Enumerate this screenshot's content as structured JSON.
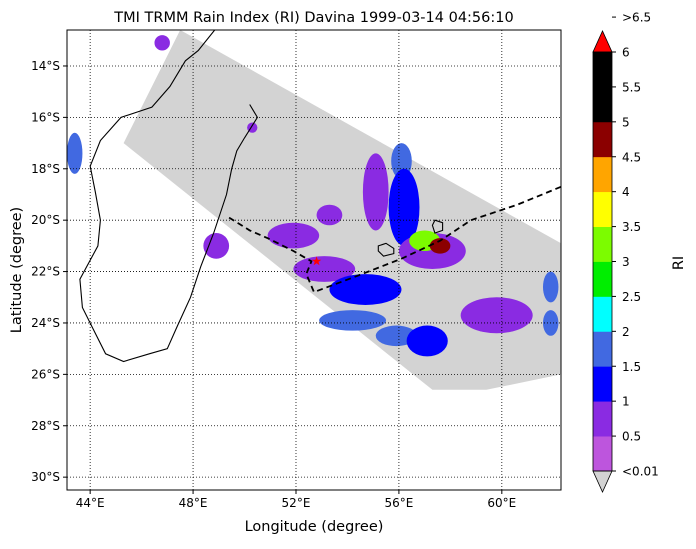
{
  "chart_data": {
    "type": "heatmap",
    "title": "TMI TRMM Rain Index (RI) Davina 1999-03-14 04:56:10",
    "xlabel": "Longitude (degree)",
    "ylabel": "Latitude (degree)",
    "xlim": [
      43.1,
      62.3
    ],
    "ylim": [
      -30.5,
      -12.6
    ],
    "x_ticks": [
      {
        "value": 44,
        "label": "44°E"
      },
      {
        "value": 48,
        "label": "48°E"
      },
      {
        "value": 52,
        "label": "52°E"
      },
      {
        "value": 56,
        "label": "56°E"
      },
      {
        "value": 60,
        "label": "60°E"
      }
    ],
    "y_ticks": [
      {
        "value": -14,
        "label": "14°S"
      },
      {
        "value": -16,
        "label": "16°S"
      },
      {
        "value": -18,
        "label": "18°S"
      },
      {
        "value": -20,
        "label": "20°S"
      },
      {
        "value": -22,
        "label": "22°S"
      },
      {
        "value": -24,
        "label": "24°S"
      },
      {
        "value": -26,
        "label": "26°S"
      },
      {
        "value": -28,
        "label": "28°S"
      },
      {
        "value": -30,
        "label": "30°S"
      }
    ],
    "grid": "dotted",
    "swath_color": "#d3d3d3",
    "swath": [
      [
        45.3,
        -17.0
      ],
      [
        47.5,
        -12.6
      ],
      [
        62.3,
        -20.9
      ],
      [
        62.3,
        -26.0
      ],
      [
        59.4,
        -26.6
      ],
      [
        57.3,
        -26.6
      ]
    ],
    "coastline": [
      [
        50.2,
        -15.5
      ],
      [
        50.5,
        -16.0
      ],
      [
        50.0,
        -16.8
      ],
      [
        49.7,
        -17.3
      ],
      [
        49.5,
        -18.0
      ],
      [
        49.3,
        -19.0
      ],
      [
        48.8,
        -20.5
      ],
      [
        48.3,
        -21.8
      ],
      [
        47.9,
        -23.0
      ],
      [
        47.4,
        -24.1
      ],
      [
        47.0,
        -25.0
      ],
      [
        46.3,
        -25.2
      ],
      [
        45.3,
        -25.5
      ],
      [
        44.6,
        -25.2
      ],
      [
        44.1,
        -24.2
      ],
      [
        43.7,
        -23.4
      ],
      [
        43.6,
        -22.3
      ],
      [
        44.3,
        -21.0
      ],
      [
        44.4,
        -20.0
      ],
      [
        44.2,
        -18.9
      ],
      [
        44.0,
        -17.9
      ],
      [
        44.4,
        -16.9
      ],
      [
        45.2,
        -16.0
      ],
      [
        46.4,
        -15.6
      ],
      [
        47.1,
        -14.8
      ],
      [
        47.7,
        -13.8
      ],
      [
        48.2,
        -13.4
      ],
      [
        49.0,
        -12.4
      ]
    ],
    "islands": [
      [
        [
          55.2,
          -21.0
        ],
        [
          55.5,
          -20.9
        ],
        [
          55.8,
          -21.1
        ],
        [
          55.8,
          -21.3
        ],
        [
          55.4,
          -21.4
        ],
        [
          55.2,
          -21.2
        ]
      ],
      [
        [
          57.4,
          -20.0
        ],
        [
          57.7,
          -20.1
        ],
        [
          57.7,
          -20.4
        ],
        [
          57.4,
          -20.5
        ],
        [
          57.3,
          -20.2
        ]
      ]
    ],
    "track": [
      [
        49.4,
        -19.9
      ],
      [
        50.2,
        -20.4
      ],
      [
        50.9,
        -20.7
      ],
      [
        51.9,
        -21.2
      ],
      [
        52.6,
        -21.6
      ],
      [
        52.4,
        -22.1
      ],
      [
        52.7,
        -22.8
      ],
      [
        54.3,
        -22.2
      ],
      [
        56.1,
        -21.5
      ],
      [
        57.6,
        -20.8
      ],
      [
        58.8,
        -20.0
      ],
      [
        60.6,
        -19.4
      ],
      [
        62.3,
        -18.7
      ]
    ],
    "track_color": "#000000",
    "storm_center": {
      "lon": 52.8,
      "lat": -21.6,
      "color": "#ff0000"
    },
    "rain_cells": [
      {
        "lon": 46.8,
        "lat": -13.1,
        "level": 1,
        "rx": 0.3,
        "ry": 0.3
      },
      {
        "lon": 43.4,
        "lat": -17.4,
        "level": 3,
        "rx": 0.3,
        "ry": 0.8
      },
      {
        "lon": 55.1,
        "lat": -18.9,
        "level": 1,
        "rx": 0.5,
        "ry": 1.5
      },
      {
        "lon": 56.1,
        "lat": -17.7,
        "level": 3,
        "rx": 0.4,
        "ry": 0.7
      },
      {
        "lon": 56.2,
        "lat": -19.5,
        "level": 2,
        "rx": 0.6,
        "ry": 1.5
      },
      {
        "lon": 57.3,
        "lat": -21.2,
        "level": 1,
        "rx": 1.3,
        "ry": 0.7
      },
      {
        "lon": 57.0,
        "lat": -20.8,
        "level": 6,
        "rx": 0.6,
        "ry": 0.4
      },
      {
        "lon": 57.6,
        "lat": -21.0,
        "level": 9,
        "rx": 0.4,
        "ry": 0.3
      },
      {
        "lon": 51.9,
        "lat": -20.6,
        "level": 1,
        "rx": 1.0,
        "ry": 0.5
      },
      {
        "lon": 53.1,
        "lat": -21.9,
        "level": 1,
        "rx": 1.2,
        "ry": 0.5
      },
      {
        "lon": 54.7,
        "lat": -22.7,
        "level": 2,
        "rx": 1.4,
        "ry": 0.6
      },
      {
        "lon": 48.9,
        "lat": -21.0,
        "level": 1,
        "rx": 0.5,
        "ry": 0.5
      },
      {
        "lon": 54.2,
        "lat": -23.9,
        "level": 3,
        "rx": 1.3,
        "ry": 0.4
      },
      {
        "lon": 55.9,
        "lat": -24.5,
        "level": 3,
        "rx": 0.8,
        "ry": 0.4
      },
      {
        "lon": 57.1,
        "lat": -24.7,
        "level": 2,
        "rx": 0.8,
        "ry": 0.6
      },
      {
        "lon": 59.8,
        "lat": -23.7,
        "level": 1,
        "rx": 1.4,
        "ry": 0.7
      },
      {
        "lon": 61.9,
        "lat": -22.6,
        "level": 3,
        "rx": 0.3,
        "ry": 0.6
      },
      {
        "lon": 61.9,
        "lat": -24.0,
        "level": 3,
        "rx": 0.3,
        "ry": 0.5
      },
      {
        "lon": 53.3,
        "lat": -19.8,
        "level": 1,
        "rx": 0.5,
        "ry": 0.4
      },
      {
        "lon": 50.3,
        "lat": -16.4,
        "level": 1,
        "rx": 0.2,
        "ry": 0.2
      }
    ],
    "colorbar": {
      "label": "RI",
      "levels": [
        "<0.01",
        "0.5",
        "1",
        "1.5",
        "2",
        "2.5",
        "3",
        "3.5",
        "4",
        "4.5",
        "5",
        "5.5",
        "6",
        ">6.5"
      ],
      "colors": [
        "#bd55dd",
        "#8a2be2",
        "#0000ff",
        "#4169e1",
        "#00ffff",
        "#00ee00",
        "#7cfc00",
        "#ffff00",
        "#ffa500",
        "#8b0000",
        "#000000",
        "#000000"
      ],
      "under_color": "#d3d3d3",
      "over_color": "#ff0000"
    }
  }
}
